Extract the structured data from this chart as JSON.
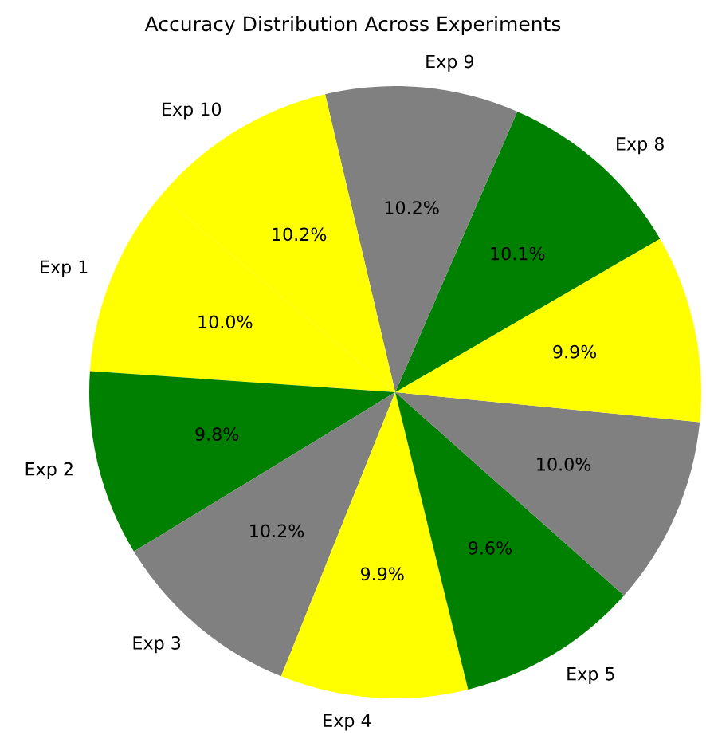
{
  "chart_data": {
    "type": "pie",
    "title": "Accuracy Distribution Across Experiments",
    "categories": [
      "Exp 1",
      "Exp 2",
      "Exp 3",
      "Exp 4",
      "Exp 5",
      null,
      null,
      "Exp 8",
      "Exp 9",
      "Exp 10"
    ],
    "values": [
      10.0,
      9.8,
      10.2,
      9.9,
      9.6,
      10.0,
      9.9,
      10.1,
      10.2,
      10.2
    ],
    "colors": [
      "#ffff00",
      "#008000",
      "#808080",
      "#ffff00",
      "#008000",
      "#808080",
      "#ffff00",
      "#008000",
      "#808080",
      "#ffff00"
    ],
    "value_labels": [
      "10.0%",
      "9.8%",
      "10.2%",
      "9.9%",
      "9.6%",
      "10.0%",
      "9.9%",
      "10.1%",
      "10.2%",
      "10.2%"
    ]
  }
}
